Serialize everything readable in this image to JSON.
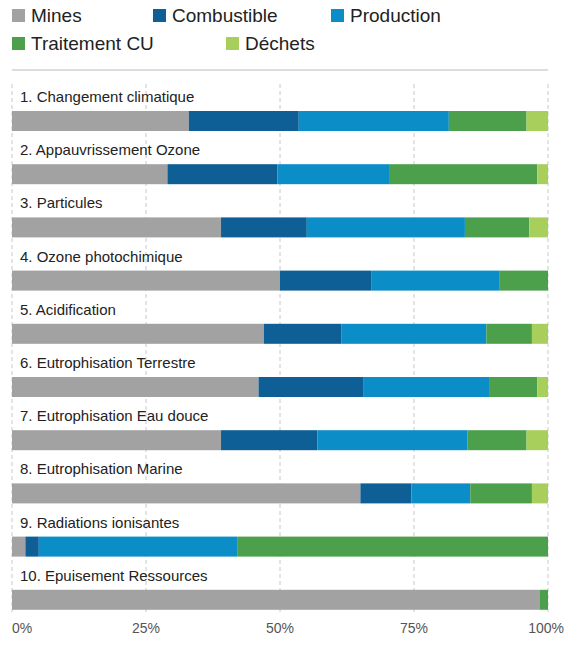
{
  "chart_data": {
    "type": "bar",
    "orientation": "horizontal",
    "stacked": true,
    "grid": true,
    "legend": "top",
    "categories": [
      "1. Changement climatique",
      "2. Appauvrissement Ozone",
      "3. Particules",
      "4. Ozone photochimique",
      "5. Acidification",
      "6. Eutrophisation Terrestre",
      "7. Eutrophisation Eau douce",
      "8. Eutrophisation Marine",
      "9. Radiations ionisantes",
      "10. Epuisement Ressources"
    ],
    "series": [
      {
        "name": "Mines",
        "color": "#a2a2a2",
        "values": [
          33,
          29,
          39,
          50,
          47,
          46,
          39,
          65,
          2.5,
          98.5
        ]
      },
      {
        "name": "Combustible",
        "color": "#0e5f95",
        "values": [
          20.5,
          20.5,
          16,
          17,
          14.5,
          19.5,
          18,
          9.5,
          2.5,
          0
        ]
      },
      {
        "name": "Production",
        "color": "#0b8dc8",
        "values": [
          28,
          21,
          29.5,
          24,
          27,
          23.5,
          28,
          11,
          37,
          0
        ]
      },
      {
        "name": "Traitement CU",
        "color": "#4ca04c",
        "values": [
          14.5,
          27.5,
          12,
          9,
          8.5,
          9,
          11,
          11.5,
          58,
          1.5
        ]
      },
      {
        "name": "Déchets",
        "color": "#a8cf5c",
        "values": [
          4,
          2,
          3.5,
          0,
          3,
          2,
          4,
          3,
          0,
          0
        ]
      }
    ],
    "xlim": [
      0,
      100
    ],
    "xticks": [
      {
        "value": 0,
        "label": "0%"
      },
      {
        "value": 25,
        "label": "25%"
      },
      {
        "value": 50,
        "label": "50%"
      },
      {
        "value": 75,
        "label": "75%"
      },
      {
        "value": 100,
        "label": "100%"
      }
    ]
  }
}
